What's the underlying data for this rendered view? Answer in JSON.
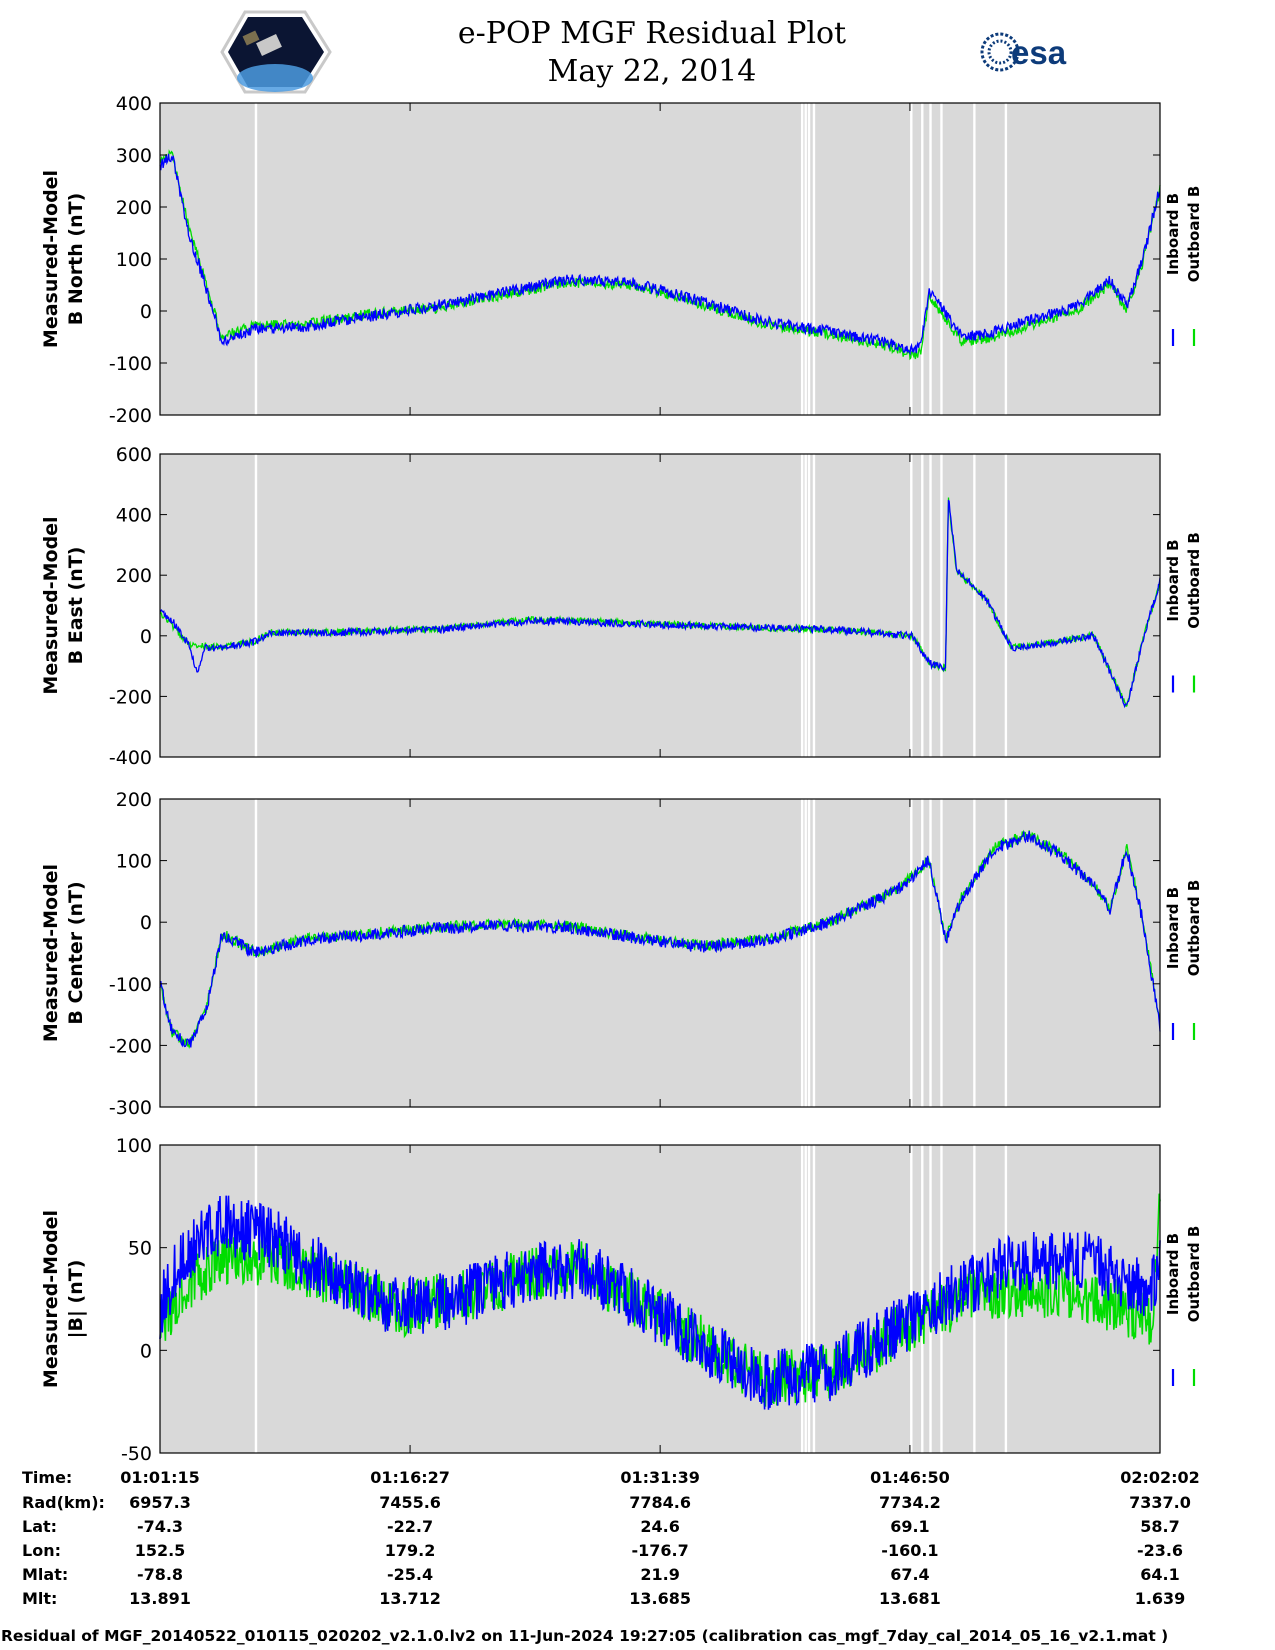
{
  "title": "e-POP MGF Residual Plot",
  "subtitle": "May 22, 2014",
  "logos": {
    "left": "cassiope-mission-logo",
    "right": "esa"
  },
  "colors": {
    "inboard": "#0000ff",
    "outboard": "#00dd00",
    "panel_bg": "#d9d9d9",
    "gap": "#ffffff"
  },
  "legend": {
    "inboard": "Inboard B",
    "outboard": "Outboard B"
  },
  "time_axis": {
    "start": "01:01:15",
    "end": "02:02:02",
    "data_gaps": [
      "01:07:05",
      "01:40:17",
      "01:40:30",
      "01:40:42",
      "01:41:00",
      "01:46:55",
      "01:47:35",
      "01:48:05",
      "01:48:45",
      "01:50:45",
      "01:52:40"
    ]
  },
  "chart_data": [
    {
      "type": "line",
      "ylabel_1": "Measured-Model",
      "ylabel_2": "B North (nT)",
      "ylim": [
        -200,
        400
      ],
      "yticks": [
        "400",
        "300",
        "200",
        "100",
        "0",
        "-100",
        "-200"
      ],
      "series": [
        {
          "name": "Inboard B",
          "x": [
            "01:01:15",
            "01:02:00",
            "01:03:00",
            "01:04:00",
            "01:05:00",
            "01:07:00",
            "01:10:00",
            "01:14:00",
            "01:18:00",
            "01:22:00",
            "01:26:00",
            "01:30:00",
            "01:34:00",
            "01:38:00",
            "01:42:00",
            "01:45:30",
            "01:47:00",
            "01:47:30",
            "01:48:00",
            "01:50:00",
            "01:52:00",
            "01:55:00",
            "01:57:00",
            "01:59:00",
            "02:00:00",
            "02:01:00",
            "02:02:02"
          ],
          "values": [
            280,
            300,
            150,
            50,
            -60,
            -35,
            -30,
            -10,
            10,
            35,
            60,
            55,
            20,
            -20,
            -40,
            -60,
            -75,
            -70,
            40,
            -50,
            -40,
            -10,
            10,
            60,
            10,
            100,
            240
          ]
        },
        {
          "name": "Outboard B",
          "x": [
            "01:01:15",
            "01:02:00",
            "01:03:00",
            "01:04:00",
            "01:05:00",
            "01:07:00",
            "01:10:00",
            "01:14:00",
            "01:18:00",
            "01:22:00",
            "01:26:00",
            "01:30:00",
            "01:34:00",
            "01:38:00",
            "01:42:00",
            "01:45:30",
            "01:47:00",
            "01:47:30",
            "01:48:00",
            "01:50:00",
            "01:52:00",
            "01:55:00",
            "01:57:00",
            "01:59:00",
            "02:00:00",
            "02:01:00",
            "02:02:02"
          ],
          "values": [
            285,
            305,
            160,
            60,
            -50,
            -28,
            -25,
            -5,
            5,
            30,
            55,
            50,
            15,
            -25,
            -45,
            -68,
            -85,
            -80,
            30,
            -60,
            -50,
            -18,
            2,
            52,
            2,
            95,
            235
          ]
        }
      ]
    },
    {
      "type": "line",
      "ylabel_1": "Measured-Model",
      "ylabel_2": "B East (nT)",
      "ylim": [
        -400,
        600
      ],
      "yticks": [
        "600",
        "400",
        "200",
        "0",
        "-200",
        "-400"
      ],
      "series": [
        {
          "name": "Inboard B",
          "x": [
            "01:01:15",
            "01:02:00",
            "01:03:00",
            "01:03:30",
            "01:04:00",
            "01:05:00",
            "01:07:00",
            "01:08:00",
            "01:12:00",
            "01:18:00",
            "01:24:00",
            "01:30:00",
            "01:36:00",
            "01:42:00",
            "01:47:00",
            "01:48:00",
            "01:49:00",
            "01:49:10",
            "01:49:40",
            "01:51:30",
            "01:53:00",
            "01:56:00",
            "01:58:00",
            "02:00:00",
            "02:01:00",
            "02:02:02"
          ],
          "values": [
            80,
            50,
            -30,
            -120,
            -40,
            -40,
            -20,
            10,
            10,
            20,
            50,
            40,
            30,
            20,
            0,
            -90,
            -110,
            460,
            220,
            120,
            -40,
            -20,
            0,
            -240,
            -10,
            180
          ]
        },
        {
          "name": "Outboard B",
          "x": [
            "01:01:15",
            "01:03:00",
            "01:05:00",
            "01:07:00",
            "01:08:00",
            "01:12:00",
            "01:18:00",
            "01:24:00",
            "01:30:00",
            "01:36:00",
            "01:42:00",
            "01:47:00",
            "01:48:00",
            "01:49:00",
            "01:49:10",
            "01:49:40",
            "01:51:30",
            "01:53:00",
            "01:56:00",
            "01:58:00",
            "02:00:00",
            "02:01:00",
            "02:02:02"
          ],
          "values": [
            78,
            -28,
            -38,
            -18,
            12,
            12,
            23,
            55,
            42,
            30,
            20,
            0,
            -88,
            -108,
            450,
            215,
            118,
            -38,
            -18,
            2,
            -235,
            -8,
            175
          ]
        }
      ]
    },
    {
      "type": "line",
      "ylabel_1": "Measured-Model",
      "ylabel_2": "B Center (nT)",
      "ylim": [
        -300,
        200
      ],
      "yticks": [
        "200",
        "100",
        "0",
        "-100",
        "-200",
        "-300"
      ],
      "series": [
        {
          "name": "Inboard B",
          "x": [
            "01:01:15",
            "01:02:00",
            "01:03:00",
            "01:04:00",
            "01:05:00",
            "01:07:00",
            "01:10:00",
            "01:14:00",
            "01:18:00",
            "01:22:00",
            "01:26:00",
            "01:30:00",
            "01:34:00",
            "01:38:00",
            "01:42:00",
            "01:46:00",
            "01:48:00",
            "01:49:00",
            "01:50:00",
            "01:52:00",
            "01:54:00",
            "01:56:00",
            "01:58:00",
            "01:59:00",
            "02:00:00",
            "02:01:00",
            "02:02:02"
          ],
          "values": [
            -100,
            -180,
            -200,
            -150,
            -20,
            -50,
            -30,
            -20,
            -10,
            -5,
            -8,
            -25,
            -40,
            -30,
            0,
            50,
            100,
            -30,
            40,
            120,
            140,
            110,
            60,
            20,
            120,
            0,
            -170
          ]
        },
        {
          "name": "Outboard B",
          "x": [
            "01:01:15",
            "01:02:00",
            "01:03:00",
            "01:04:00",
            "01:05:00",
            "01:07:00",
            "01:10:00",
            "01:14:00",
            "01:18:00",
            "01:22:00",
            "01:26:00",
            "01:30:00",
            "01:34:00",
            "01:38:00",
            "01:42:00",
            "01:46:00",
            "01:48:00",
            "01:49:00",
            "01:50:00",
            "01:52:00",
            "01:54:00",
            "01:56:00",
            "01:58:00",
            "01:59:00",
            "02:00:00",
            "02:01:00",
            "02:02:02"
          ],
          "values": [
            -98,
            -178,
            -198,
            -148,
            -18,
            -48,
            -28,
            -18,
            -8,
            -3,
            -6,
            -23,
            -38,
            -28,
            2,
            52,
            102,
            -28,
            42,
            122,
            142,
            112,
            62,
            22,
            122,
            2,
            -165
          ]
        }
      ]
    },
    {
      "type": "line",
      "ylabel_1": "Measured-Model",
      "ylabel_2": "|B| (nT)",
      "ylim": [
        -50,
        100
      ],
      "yticks": [
        "100",
        "50",
        "0",
        "-50"
      ],
      "series": [
        {
          "name": "Inboard B",
          "x": [
            "01:01:15",
            "01:02:30",
            "01:05:00",
            "01:08:00",
            "01:12:00",
            "01:16:00",
            "01:20:00",
            "01:24:00",
            "01:27:00",
            "01:30:00",
            "01:34:00",
            "01:38:00",
            "01:42:00",
            "01:46:00",
            "01:50:00",
            "01:53:00",
            "01:57:00",
            "02:00:00",
            "02:01:30",
            "02:02:02"
          ],
          "values": [
            20,
            45,
            62,
            55,
            35,
            20,
            27,
            38,
            40,
            25,
            5,
            -15,
            -10,
            10,
            30,
            43,
            45,
            35,
            30,
            40
          ]
        },
        {
          "name": "Outboard B",
          "x": [
            "01:01:15",
            "01:02:30",
            "01:05:00",
            "01:08:00",
            "01:12:00",
            "01:16:00",
            "01:20:00",
            "01:24:00",
            "01:27:00",
            "01:30:00",
            "01:34:00",
            "01:38:00",
            "01:42:00",
            "01:46:00",
            "01:50:00",
            "01:53:00",
            "01:57:00",
            "02:00:00",
            "02:01:30",
            "02:02:02"
          ],
          "values": [
            10,
            30,
            45,
            45,
            33,
            20,
            27,
            38,
            40,
            25,
            5,
            -15,
            -10,
            8,
            25,
            30,
            28,
            20,
            12,
            70
          ]
        }
      ]
    }
  ],
  "ephemeris_table": {
    "row_labels": [
      "Time:",
      "Rad(km):",
      "Lat:",
      "Lon:",
      "Mlat:",
      "Mlt:"
    ],
    "columns": [
      [
        "01:01:15",
        "6957.3",
        "-74.3",
        "152.5",
        "-78.8",
        "13.891"
      ],
      [
        "01:16:27",
        "7455.6",
        "-22.7",
        "179.2",
        "-25.4",
        "13.712"
      ],
      [
        "01:31:39",
        "7784.6",
        "24.6",
        "-176.7",
        "21.9",
        "13.685"
      ],
      [
        "01:46:50",
        "7734.2",
        "69.1",
        "-160.1",
        "67.4",
        "13.681"
      ],
      [
        "02:02:02",
        "7337.0",
        "58.7",
        "-23.6",
        "64.1",
        "1.639"
      ]
    ]
  },
  "footer": "Residual of MGF_20140522_010115_020202_v2.1.0.lv2 on 11-Jun-2024 19:27:05 (calibration cas_mgf_7day_cal_2014_05_16_v2.1.mat )"
}
